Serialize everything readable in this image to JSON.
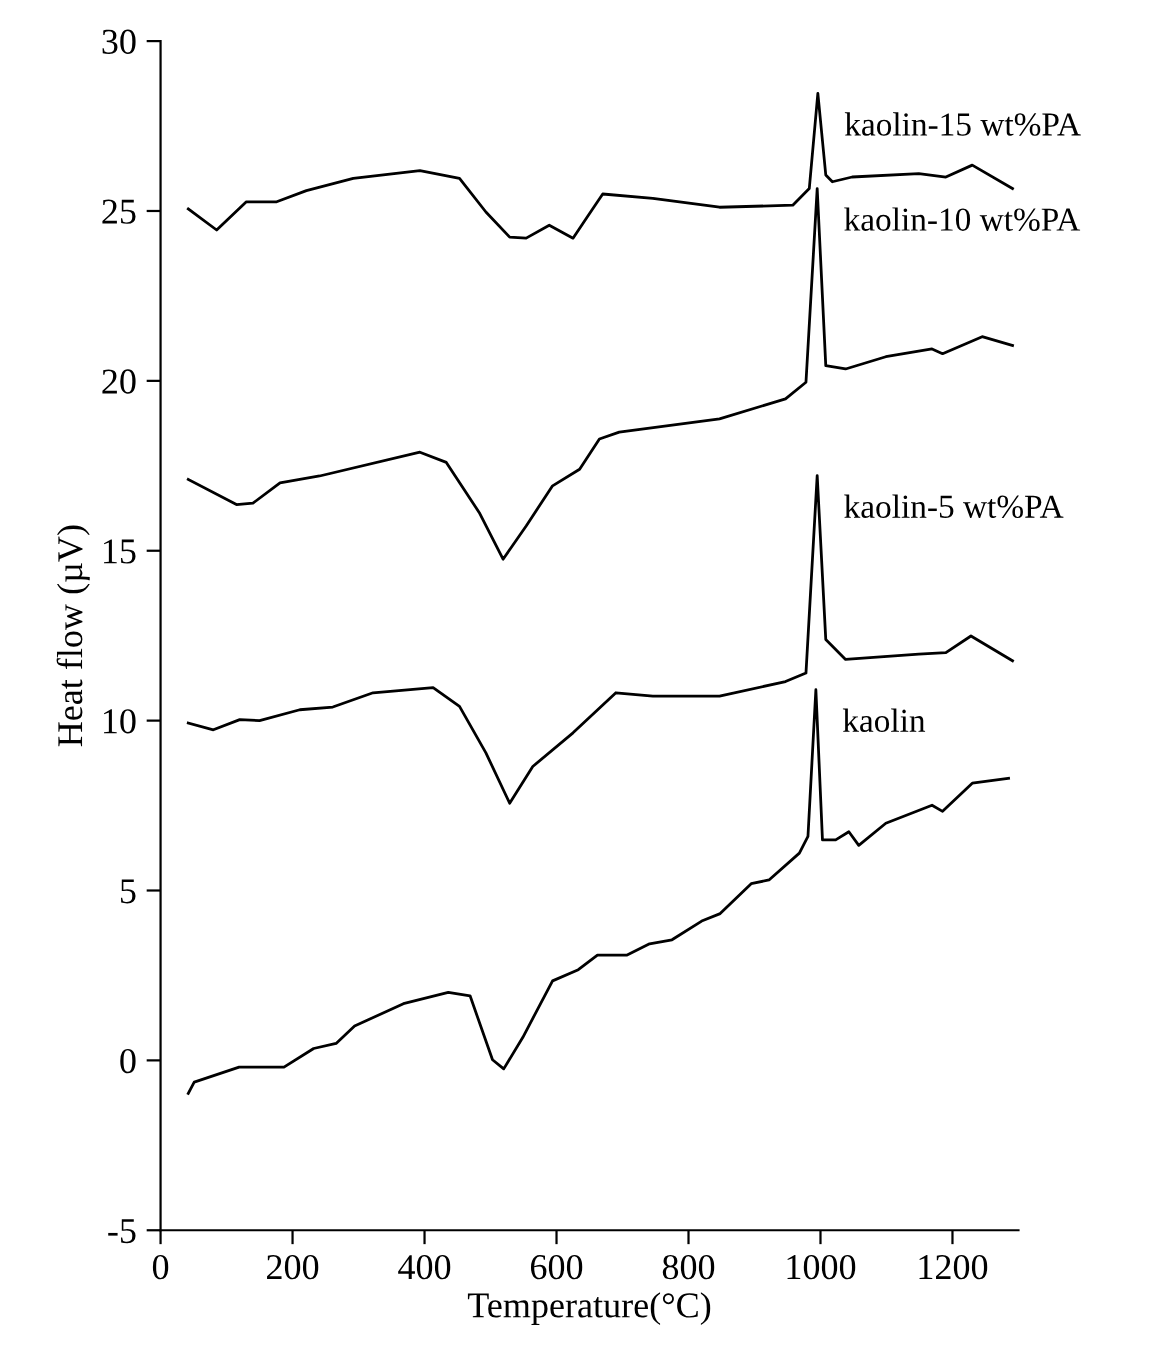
{
  "chart_data": {
    "type": "line",
    "xlabel": "Temperature(°C)",
    "ylabel": "Heat flow (µV)",
    "xlim": [
      0,
      1300
    ],
    "xticks": [
      0,
      200,
      400,
      600,
      800,
      1000,
      1200
    ],
    "ylim": [
      -5,
      30
    ],
    "yticks": [
      -5,
      0,
      5,
      10,
      15,
      20,
      25,
      30
    ],
    "grid": false,
    "legend": false,
    "marker": "none",
    "line_style": "solid",
    "series": [
      {
        "name": "kaolin-15 wt%PA",
        "color": "#000000",
        "x": [
          42,
          85,
          130,
          176,
          221,
          292,
          393,
          453,
          493,
          529,
          554,
          589,
          625,
          645,
          670,
          746,
          847,
          958,
          983,
          996,
          1008,
          1018,
          1048,
          1149,
          1190,
          1230,
          1291
        ],
        "values": [
          25.06,
          24.44,
          25.27,
          25.27,
          25.6,
          25.96,
          26.19,
          25.96,
          24.97,
          24.23,
          24.2,
          24.58,
          24.2,
          24.78,
          25.5,
          25.37,
          25.11,
          25.17,
          25.66,
          28.46,
          26.06,
          25.86,
          26.0,
          26.1,
          26.0,
          26.35,
          25.66
        ]
      },
      {
        "name": "kaolin-10 wt%PA",
        "color": "#000000",
        "x": [
          42,
          115,
          140,
          181,
          241,
          393,
          433,
          483,
          519,
          554,
          594,
          635,
          665,
          695,
          847,
          947,
          978,
          995,
          1008,
          1038,
          1099,
          1169,
          1185,
          1245,
          1291
        ],
        "values": [
          17.1,
          16.36,
          16.4,
          17.0,
          17.2,
          17.9,
          17.6,
          16.12,
          14.75,
          15.73,
          16.91,
          17.4,
          18.29,
          18.49,
          18.88,
          19.47,
          19.96,
          25.66,
          20.45,
          20.35,
          20.71,
          20.94,
          20.8,
          21.3,
          21.04
        ]
      },
      {
        "name": "kaolin-5 wt%PA",
        "color": "#000000",
        "x": [
          42,
          80,
          120,
          150,
          211,
          261,
          322,
          413,
          453,
          493,
          529,
          564,
          625,
          690,
          746,
          847,
          947,
          978,
          995,
          1008,
          1038,
          1149,
          1190,
          1228,
          1291
        ],
        "values": [
          9.93,
          9.73,
          10.03,
          10.0,
          10.32,
          10.4,
          10.82,
          10.97,
          10.42,
          9.05,
          7.57,
          8.65,
          9.64,
          10.82,
          10.72,
          10.72,
          11.15,
          11.4,
          17.21,
          12.39,
          11.8,
          11.96,
          12.0,
          12.49,
          11.76
        ]
      },
      {
        "name": "kaolin",
        "color": "#000000",
        "x": [
          42,
          51,
          119,
          159,
          187,
          232,
          266,
          294,
          368,
          436,
          469,
          503,
          520,
          549,
          594,
          633,
          662,
          707,
          741,
          775,
          820,
          848,
          895,
          922,
          968,
          981,
          993,
          1003,
          1023,
          1043,
          1058,
          1099,
          1169,
          1185,
          1230,
          1285
        ],
        "values": [
          -0.97,
          -0.64,
          -0.2,
          -0.2,
          -0.2,
          0.35,
          0.5,
          1.01,
          1.67,
          2.0,
          1.9,
          0.02,
          -0.25,
          0.68,
          2.34,
          2.67,
          3.1,
          3.1,
          3.43,
          3.55,
          4.1,
          4.32,
          5.2,
          5.31,
          6.1,
          6.59,
          10.91,
          6.49,
          6.49,
          6.73,
          6.33,
          6.98,
          7.51,
          7.33,
          8.16,
          8.3
        ]
      }
    ]
  }
}
